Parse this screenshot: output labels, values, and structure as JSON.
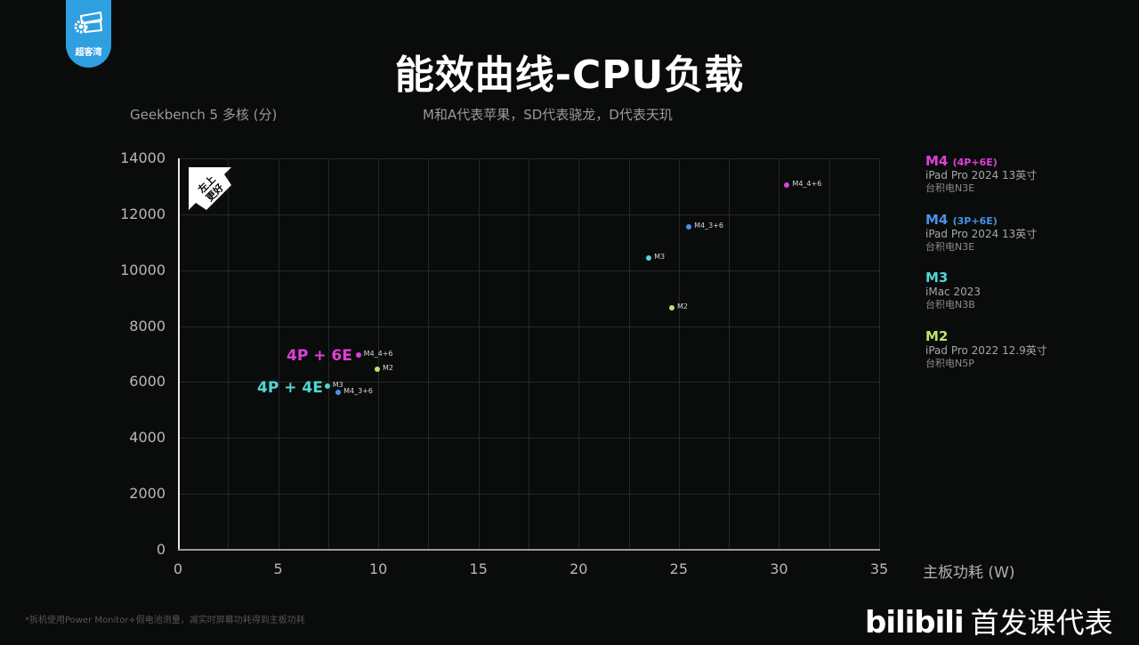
{
  "brand": {
    "logo_text": "超客湾",
    "watermark_logo": "bilibili",
    "watermark_text": "首发课代表"
  },
  "header": {
    "title": "能效曲线-CPU负载",
    "y_axis_label": "Geekbench 5 多核 (分)",
    "subtitle": "M和A代表苹果，SD代表骁龙，D代表天玑"
  },
  "badge": {
    "line1": "左上",
    "line2": "更好"
  },
  "footnote": "*拆机使用Power Monitor+假电池测量，减实时屏幕功耗得到主板功耗",
  "legend": [
    {
      "chip": "M4",
      "config": "(4P+6E)",
      "device": "iPad Pro 2024 13英寸",
      "fab": "台积电N3E",
      "color": "#e040d8"
    },
    {
      "chip": "M4",
      "config": "(3P+6E)",
      "device": "iPad Pro 2024 13英寸",
      "fab": "台积电N3E",
      "color": "#4a8fe8"
    },
    {
      "chip": "M3",
      "config": "",
      "device": "iMac 2023",
      "fab": "台积电N3B",
      "color": "#4fd6d6"
    },
    {
      "chip": "M2",
      "config": "",
      "device": "iPad Pro 2022 12.9英寸",
      "fab": "台积电N5P",
      "color": "#b9e66a"
    }
  ],
  "group_labels": [
    {
      "text": "4P + 6E",
      "color": "#e040d8"
    },
    {
      "text": "4P + 4E",
      "color": "#4fd6d6"
    }
  ],
  "chart_data": {
    "type": "scatter",
    "title": "能效曲线-CPU负载",
    "subtitle": "M和A代表苹果，SD代表骁龙，D代表天玑",
    "xlabel": "主板功耗 (W)",
    "ylabel": "Geekbench 5 多核 (分)",
    "xlim": [
      0,
      35
    ],
    "ylim": [
      0,
      14000
    ],
    "x_ticks": [
      "0",
      "5",
      "10",
      "15",
      "20",
      "25",
      "30",
      "35"
    ],
    "y_ticks": [
      "0",
      "2000",
      "4000",
      "6000",
      "8000",
      "10000",
      "12000",
      "14000"
    ],
    "grid": true,
    "legend_position": "right",
    "annotations": [
      "左上更好",
      "4P + 6E",
      "4P + 4E"
    ],
    "series": [
      {
        "name": "M4 (4P+6E)",
        "label": "M4_4+6",
        "color": "#e040d8",
        "points": [
          {
            "x": 30.4,
            "y": 13050
          },
          {
            "x": 9.0,
            "y": 6970
          }
        ]
      },
      {
        "name": "M4 (3P+6E)",
        "label": "M4_3+6",
        "color": "#4a8fe8",
        "points": [
          {
            "x": 25.5,
            "y": 11550
          },
          {
            "x": 8.0,
            "y": 5630
          }
        ]
      },
      {
        "name": "M3",
        "label": "M3",
        "color": "#4fd6d6",
        "points": [
          {
            "x": 23.5,
            "y": 10440
          },
          {
            "x": 7.45,
            "y": 5850
          }
        ]
      },
      {
        "name": "M2",
        "label": "M2",
        "color": "#b9e66a",
        "points": [
          {
            "x": 24.65,
            "y": 8650
          },
          {
            "x": 9.95,
            "y": 6460
          }
        ]
      }
    ]
  }
}
